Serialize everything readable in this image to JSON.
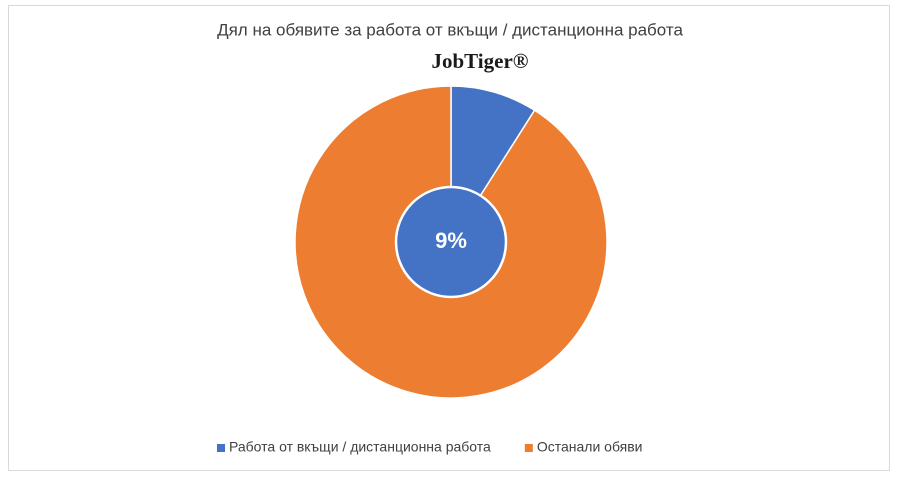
{
  "chart_data": {
    "type": "pie",
    "title": "Дял на обявите за работа от вкъщи / дистанционна работа",
    "logo": "JobTiger®",
    "categories": [
      "Работа от вкъщи / дистанционна работа",
      "Останали обяви"
    ],
    "values": [
      9,
      91
    ],
    "value_labels": [
      "9%",
      null
    ],
    "colors": [
      "#4472c4",
      "#ed7d31"
    ],
    "legend": "bottom"
  }
}
